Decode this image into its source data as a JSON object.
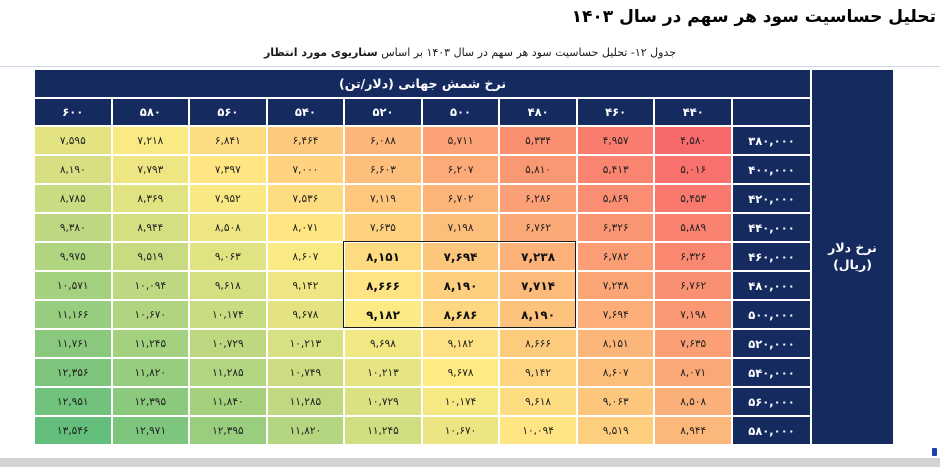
{
  "page": {
    "title": "تحلیل حساسیت سود هر سهم در سال ۱۴۰۳"
  },
  "subtitle": {
    "prefix": "جدول ۱۲- تحلیل حساسیت سود هر سهم در سال ۱۴۰۳ بر اساس ",
    "bold": "سناریوی مورد انتظار"
  },
  "chart_data": {
    "type": "heatmap",
    "title": "تحلیل حساسیت سود هر سهم در سال ۱۴۰۳",
    "col_axis_label": "نرخ شمش جهانی (دلار/تن)",
    "row_axis_label": "نرخ دلار (ریال)",
    "row_axis_lines": [
      "نرخ دلار",
      "(ریال)"
    ],
    "columns_left_to_right": [
      600,
      580,
      560,
      540,
      520,
      500,
      480,
      460,
      440
    ],
    "rows_top_to_bottom": [
      380000,
      400000,
      420000,
      440000,
      460000,
      480000,
      500000,
      520000,
      540000,
      560000,
      580000
    ],
    "values": [
      [
        7595,
        7218,
        6841,
        6464,
        6088,
        5711,
        5334,
        4957,
        4580
      ],
      [
        8190,
        7793,
        7397,
        7000,
        6603,
        6207,
        5810,
        5413,
        5016
      ],
      [
        8785,
        8369,
        7952,
        7536,
        7119,
        6702,
        6286,
        5869,
        5453
      ],
      [
        9380,
        8944,
        8508,
        8071,
        7635,
        7198,
        6762,
        6326,
        5889
      ],
      [
        9975,
        9519,
        9063,
        8607,
        8151,
        7694,
        7238,
        6782,
        6326
      ],
      [
        10571,
        10094,
        9618,
        9142,
        8666,
        8190,
        7714,
        7238,
        6762
      ],
      [
        11166,
        10670,
        10174,
        9678,
        9182,
        8686,
        8190,
        7694,
        7198
      ],
      [
        11761,
        11245,
        10729,
        10213,
        9698,
        9182,
        8666,
        8151,
        7635
      ],
      [
        12356,
        11820,
        11285,
        10749,
        10213,
        9678,
        9142,
        8607,
        8071
      ],
      [
        12951,
        12395,
        11840,
        11285,
        10729,
        10174,
        9618,
        9063,
        8508
      ],
      [
        13546,
        12971,
        12395,
        11820,
        11245,
        10670,
        10094,
        9519,
        8944
      ]
    ],
    "highlight_box": {
      "rows": [
        460000,
        480000,
        500000
      ],
      "cols": [
        520,
        500,
        480
      ],
      "row_index_start": 4,
      "row_index_end": 6,
      "col_index_start": 4,
      "col_index_end": 6
    },
    "number_locale": "persian-digits-comma-separated",
    "legend_position": "none",
    "grid": true,
    "colors": {
      "scale_min": "#F8696B",
      "scale_mid": "#FFEB84",
      "scale_max": "#63BE7B",
      "header_bg": "#152a5f",
      "header_text": "#FFFFFF",
      "cell_text": "#1F1F1F",
      "highlight_border": "#1A1A1A",
      "bottom_strip": "#D4D4D4"
    }
  }
}
